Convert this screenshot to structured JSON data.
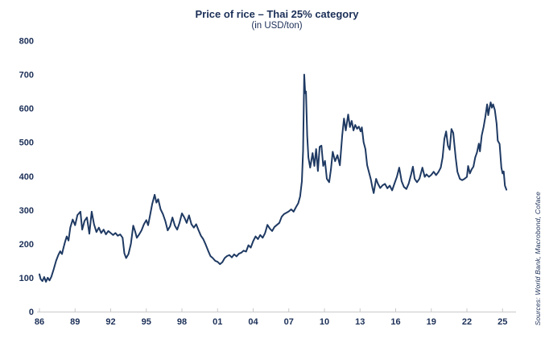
{
  "chart": {
    "title": "Price of rice – Thai 25% category",
    "subtitle": "(in USD/ton)",
    "source": "Sources: World Bank, Macrobond, Coface",
    "colors": {
      "line": "#1f3a63",
      "text": "#1b2f57",
      "axis": "#c9c9c9"
    }
  },
  "chart_data": {
    "type": "line",
    "title": "Price of rice – Thai 25% category",
    "subtitle": "(in USD/ton)",
    "ylabel": "USD/ton",
    "xlabel": "",
    "grid": false,
    "legend": false,
    "x_axis": {
      "tick_labels": [
        "86",
        "89",
        "92",
        "95",
        "98",
        "01",
        "04",
        "07",
        "10",
        "13",
        "16",
        "19",
        "22",
        "25"
      ],
      "tick_years": [
        1986,
        1989,
        1992,
        1995,
        1998,
        2001,
        2004,
        2007,
        2010,
        2013,
        2016,
        2019,
        2022,
        2025
      ],
      "range": [
        1986,
        2025.6
      ]
    },
    "y_axis": {
      "ticks": [
        0,
        100,
        200,
        300,
        400,
        500,
        600,
        700,
        800
      ],
      "range": [
        0,
        800
      ]
    },
    "series": [
      {
        "name": "Thai 25% rice price (USD/ton)",
        "points": [
          [
            1986.0,
            110
          ],
          [
            1986.1,
            96
          ],
          [
            1986.25,
            90
          ],
          [
            1986.4,
            102
          ],
          [
            1986.55,
            88
          ],
          [
            1986.7,
            100
          ],
          [
            1986.85,
            92
          ],
          [
            1987.0,
            103
          ],
          [
            1987.2,
            125
          ],
          [
            1987.4,
            150
          ],
          [
            1987.6,
            168
          ],
          [
            1987.75,
            178
          ],
          [
            1987.9,
            170
          ],
          [
            1988.0,
            185
          ],
          [
            1988.15,
            205
          ],
          [
            1988.3,
            222
          ],
          [
            1988.45,
            210
          ],
          [
            1988.6,
            248
          ],
          [
            1988.8,
            272
          ],
          [
            1989.0,
            255
          ],
          [
            1989.2,
            285
          ],
          [
            1989.45,
            295
          ],
          [
            1989.6,
            242
          ],
          [
            1989.8,
            268
          ],
          [
            1990.0,
            278
          ],
          [
            1990.2,
            230
          ],
          [
            1990.4,
            295
          ],
          [
            1990.6,
            258
          ],
          [
            1990.8,
            235
          ],
          [
            1991.0,
            248
          ],
          [
            1991.2,
            232
          ],
          [
            1991.4,
            242
          ],
          [
            1991.6,
            228
          ],
          [
            1991.8,
            238
          ],
          [
            1992.0,
            232
          ],
          [
            1992.2,
            226
          ],
          [
            1992.4,
            232
          ],
          [
            1992.6,
            224
          ],
          [
            1992.8,
            228
          ],
          [
            1993.0,
            218
          ],
          [
            1993.15,
            172
          ],
          [
            1993.3,
            158
          ],
          [
            1993.5,
            170
          ],
          [
            1993.7,
            200
          ],
          [
            1993.9,
            254
          ],
          [
            1994.05,
            238
          ],
          [
            1994.2,
            218
          ],
          [
            1994.4,
            228
          ],
          [
            1994.6,
            240
          ],
          [
            1994.8,
            258
          ],
          [
            1995.0,
            270
          ],
          [
            1995.15,
            255
          ],
          [
            1995.3,
            282
          ],
          [
            1995.5,
            318
          ],
          [
            1995.7,
            345
          ],
          [
            1995.85,
            322
          ],
          [
            1996.0,
            332
          ],
          [
            1996.2,
            302
          ],
          [
            1996.4,
            288
          ],
          [
            1996.6,
            268
          ],
          [
            1996.8,
            240
          ],
          [
            1997.0,
            252
          ],
          [
            1997.2,
            278
          ],
          [
            1997.4,
            254
          ],
          [
            1997.6,
            242
          ],
          [
            1997.8,
            262
          ],
          [
            1998.0,
            290
          ],
          [
            1998.2,
            278
          ],
          [
            1998.4,
            262
          ],
          [
            1998.6,
            284
          ],
          [
            1998.8,
            258
          ],
          [
            1999.0,
            248
          ],
          [
            1999.2,
            258
          ],
          [
            1999.4,
            240
          ],
          [
            1999.6,
            224
          ],
          [
            1999.8,
            214
          ],
          [
            2000.0,
            198
          ],
          [
            2000.2,
            180
          ],
          [
            2000.4,
            164
          ],
          [
            2000.6,
            158
          ],
          [
            2000.8,
            150
          ],
          [
            2001.0,
            147
          ],
          [
            2001.2,
            140
          ],
          [
            2001.4,
            146
          ],
          [
            2001.6,
            158
          ],
          [
            2001.8,
            164
          ],
          [
            2002.0,
            167
          ],
          [
            2002.2,
            160
          ],
          [
            2002.4,
            169
          ],
          [
            2002.6,
            163
          ],
          [
            2002.8,
            171
          ],
          [
            2003.0,
            174
          ],
          [
            2003.2,
            180
          ],
          [
            2003.4,
            177
          ],
          [
            2003.6,
            196
          ],
          [
            2003.8,
            189
          ],
          [
            2004.0,
            208
          ],
          [
            2004.2,
            222
          ],
          [
            2004.4,
            214
          ],
          [
            2004.6,
            226
          ],
          [
            2004.8,
            218
          ],
          [
            2005.0,
            232
          ],
          [
            2005.2,
            256
          ],
          [
            2005.4,
            245
          ],
          [
            2005.6,
            238
          ],
          [
            2005.8,
            250
          ],
          [
            2006.0,
            256
          ],
          [
            2006.2,
            262
          ],
          [
            2006.4,
            280
          ],
          [
            2006.6,
            288
          ],
          [
            2006.8,
            292
          ],
          [
            2007.0,
            296
          ],
          [
            2007.2,
            302
          ],
          [
            2007.4,
            295
          ],
          [
            2007.6,
            308
          ],
          [
            2007.8,
            320
          ],
          [
            2007.95,
            340
          ],
          [
            2008.1,
            385
          ],
          [
            2008.2,
            475
          ],
          [
            2008.3,
            700
          ],
          [
            2008.38,
            645
          ],
          [
            2008.45,
            650
          ],
          [
            2008.55,
            520
          ],
          [
            2008.65,
            455
          ],
          [
            2008.8,
            425
          ],
          [
            2009.0,
            468
          ],
          [
            2009.15,
            430
          ],
          [
            2009.3,
            480
          ],
          [
            2009.45,
            415
          ],
          [
            2009.6,
            487
          ],
          [
            2009.75,
            490
          ],
          [
            2009.9,
            430
          ],
          [
            2010.05,
            445
          ],
          [
            2010.2,
            392
          ],
          [
            2010.4,
            382
          ],
          [
            2010.55,
            420
          ],
          [
            2010.7,
            472
          ],
          [
            2010.9,
            444
          ],
          [
            2011.1,
            462
          ],
          [
            2011.3,
            432
          ],
          [
            2011.5,
            520
          ],
          [
            2011.65,
            570
          ],
          [
            2011.8,
            535
          ],
          [
            2012.0,
            582
          ],
          [
            2012.15,
            545
          ],
          [
            2012.3,
            563
          ],
          [
            2012.45,
            535
          ],
          [
            2012.6,
            551
          ],
          [
            2012.75,
            540
          ],
          [
            2012.9,
            546
          ],
          [
            2013.05,
            532
          ],
          [
            2013.15,
            544
          ],
          [
            2013.3,
            500
          ],
          [
            2013.45,
            480
          ],
          [
            2013.6,
            432
          ],
          [
            2013.75,
            412
          ],
          [
            2013.9,
            392
          ],
          [
            2014.05,
            365
          ],
          [
            2014.15,
            350
          ],
          [
            2014.35,
            392
          ],
          [
            2014.5,
            378
          ],
          [
            2014.7,
            365
          ],
          [
            2014.9,
            373
          ],
          [
            2015.1,
            377
          ],
          [
            2015.3,
            364
          ],
          [
            2015.5,
            372
          ],
          [
            2015.7,
            358
          ],
          [
            2015.9,
            378
          ],
          [
            2016.1,
            398
          ],
          [
            2016.3,
            425
          ],
          [
            2016.5,
            385
          ],
          [
            2016.7,
            368
          ],
          [
            2016.9,
            362
          ],
          [
            2017.1,
            378
          ],
          [
            2017.3,
            405
          ],
          [
            2017.45,
            428
          ],
          [
            2017.6,
            392
          ],
          [
            2017.8,
            382
          ],
          [
            2018.0,
            392
          ],
          [
            2018.25,
            425
          ],
          [
            2018.45,
            398
          ],
          [
            2018.6,
            405
          ],
          [
            2018.8,
            398
          ],
          [
            2019.0,
            404
          ],
          [
            2019.2,
            413
          ],
          [
            2019.4,
            403
          ],
          [
            2019.6,
            412
          ],
          [
            2019.8,
            425
          ],
          [
            2019.95,
            455
          ],
          [
            2020.1,
            510
          ],
          [
            2020.25,
            532
          ],
          [
            2020.4,
            490
          ],
          [
            2020.55,
            478
          ],
          [
            2020.7,
            539
          ],
          [
            2020.85,
            528
          ],
          [
            2021.05,
            456
          ],
          [
            2021.2,
            413
          ],
          [
            2021.4,
            392
          ],
          [
            2021.6,
            388
          ],
          [
            2021.8,
            392
          ],
          [
            2022.0,
            398
          ],
          [
            2022.1,
            430
          ],
          [
            2022.25,
            408
          ],
          [
            2022.4,
            420
          ],
          [
            2022.55,
            428
          ],
          [
            2022.7,
            455
          ],
          [
            2022.85,
            470
          ],
          [
            2023.0,
            496
          ],
          [
            2023.1,
            473
          ],
          [
            2023.25,
            520
          ],
          [
            2023.4,
            545
          ],
          [
            2023.55,
            575
          ],
          [
            2023.7,
            612
          ],
          [
            2023.8,
            580
          ],
          [
            2023.9,
            600
          ],
          [
            2024.0,
            618
          ],
          [
            2024.1,
            602
          ],
          [
            2024.2,
            612
          ],
          [
            2024.35,
            595
          ],
          [
            2024.5,
            555
          ],
          [
            2024.6,
            505
          ],
          [
            2024.75,
            495
          ],
          [
            2024.9,
            425
          ],
          [
            2025.0,
            408
          ],
          [
            2025.1,
            414
          ],
          [
            2025.2,
            372
          ],
          [
            2025.33,
            360
          ]
        ]
      }
    ]
  }
}
